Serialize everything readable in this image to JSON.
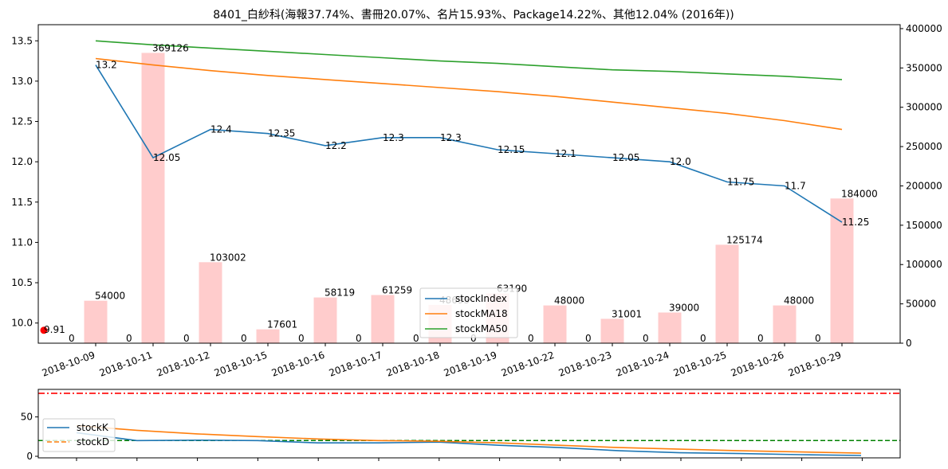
{
  "chart_data": [
    {
      "type": "line+bar",
      "title": "8401_白紗科(海報37.74%、書冊20.07%、名片15.93%、Package14.22%、其他12.04% (2016年))",
      "categories": [
        "2018-10-09",
        "2018-10-11",
        "2018-10-12",
        "2018-10-15",
        "2018-10-16",
        "2018-10-17",
        "2018-10-18",
        "2018-10-19",
        "2018-10-22",
        "2018-10-23",
        "2018-10-24",
        "2018-10-25",
        "2018-10-26",
        "2018-10-29"
      ],
      "y_left": {
        "lim": [
          9.75,
          13.7
        ],
        "ticks": [
          "10.0",
          "10.5",
          "11.0",
          "11.5",
          "12.0",
          "12.5",
          "13.0",
          "13.5"
        ]
      },
      "y_right": {
        "lim": [
          0,
          405000
        ],
        "ticks": [
          "0",
          "50000",
          "100000",
          "150000",
          "200000",
          "250000",
          "300000",
          "350000",
          "400000"
        ]
      },
      "legend": {
        "position": "center-bottom",
        "entries": [
          "stockIndex",
          "stockMA18",
          "stockMA50"
        ]
      },
      "colors": {
        "stockIndex": "#1f77b4",
        "stockMA18": "#ff7f0e",
        "stockMA50": "#2ca02c",
        "volume": "#ffcccc",
        "marker": "#ff0000"
      },
      "series": [
        {
          "name": "stockIndex",
          "values": [
            13.2,
            12.05,
            12.4,
            12.35,
            12.2,
            12.3,
            12.3,
            12.15,
            12.1,
            12.05,
            12.0,
            11.75,
            11.7,
            11.25
          ],
          "labels": [
            "13.2",
            "12.05",
            "12.4",
            "12.35",
            "12.2",
            "12.3",
            "12.3",
            "12.15",
            "12.1",
            "12.05",
            "12.0",
            "11.75",
            "11.7",
            "11.25"
          ]
        },
        {
          "name": "stockMA18",
          "values": [
            13.28,
            13.2,
            13.13,
            13.07,
            13.02,
            12.97,
            12.92,
            12.87,
            12.81,
            12.74,
            12.67,
            12.6,
            12.51,
            12.4
          ]
        },
        {
          "name": "stockMA50",
          "values": [
            13.5,
            13.45,
            13.41,
            13.37,
            13.33,
            13.29,
            13.25,
            13.22,
            13.18,
            13.14,
            13.12,
            13.09,
            13.06,
            13.02
          ]
        }
      ],
      "volume": [
        54000,
        369126,
        103002,
        17601,
        58119,
        61259,
        48695,
        63190,
        48000,
        31001,
        39000,
        125174,
        48000,
        184000
      ],
      "volume_labels": [
        "54000",
        "369126",
        "103002",
        "17601",
        "58119",
        "61259",
        "48695",
        "63190",
        "48000",
        "31001",
        "39000",
        "125174",
        "48000",
        "184000"
      ],
      "zero_labels": [
        "0",
        "0",
        "0",
        "0",
        "0",
        "0",
        "0",
        "0",
        "0",
        "0",
        "0",
        "0",
        "0",
        "0"
      ],
      "marker": {
        "value": 9.91,
        "label": "9.91"
      }
    },
    {
      "type": "line",
      "y_ticks": [
        "0",
        "50"
      ],
      "ylim": [
        -2,
        85
      ],
      "legend": {
        "position": "left",
        "entries": [
          "stockK",
          "stockD"
        ]
      },
      "colors": {
        "stockK": "#1f77b4",
        "stockD": "#ff7f0e",
        "ref_high": "#ff0000",
        "ref_low": "#008000"
      },
      "series": [
        {
          "name": "stockK",
          "values": [
            30,
            20,
            20.5,
            20,
            17,
            17,
            18,
            14,
            11,
            7,
            4.5,
            3.5,
            2,
            1
          ]
        },
        {
          "name": "stockD",
          "values": [
            39,
            33,
            28.5,
            25,
            22,
            20,
            19,
            17,
            14,
            11,
            9,
            7,
            5.5,
            4
          ]
        }
      ],
      "ref_lines": [
        80,
        20
      ]
    }
  ]
}
